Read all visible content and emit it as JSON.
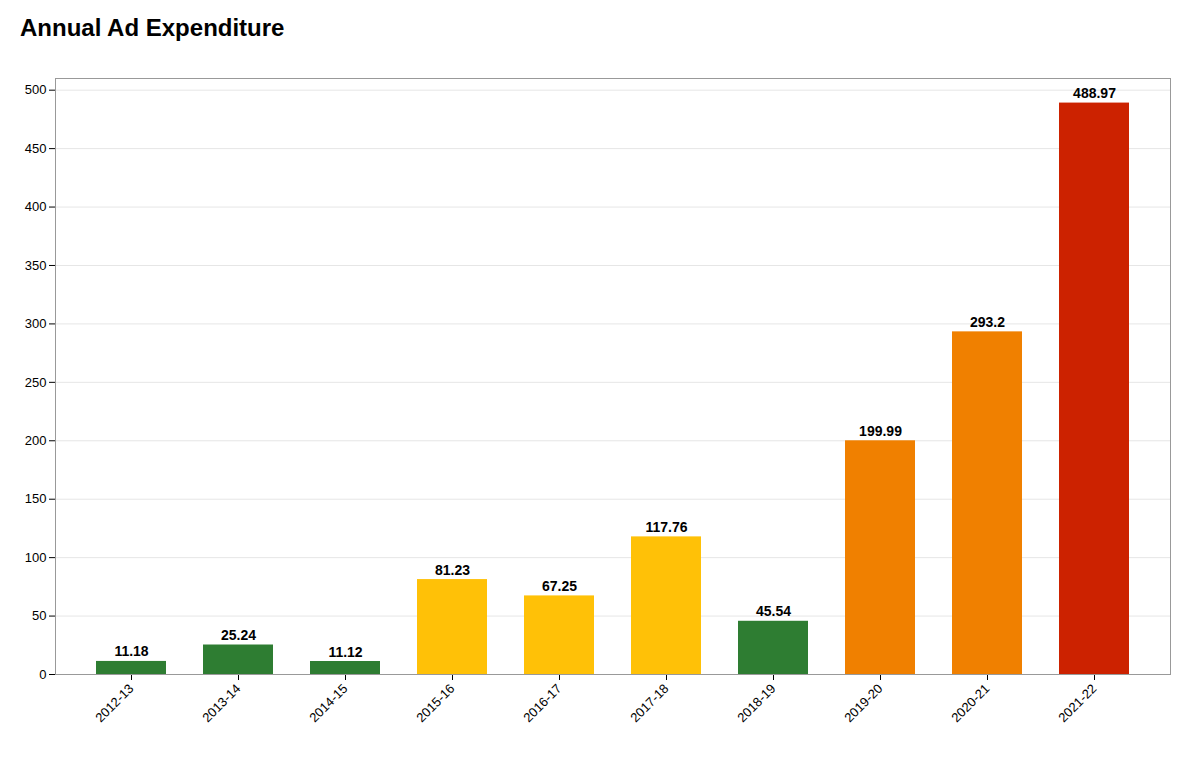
{
  "chart_data": {
    "type": "bar",
    "title": "Annual Ad Expenditure",
    "categories": [
      "2012-13",
      "2013-14",
      "2014-15",
      "2015-16",
      "2016-17",
      "2017-18",
      "2018-19",
      "2019-20",
      "2020-21",
      "2021-22"
    ],
    "values": [
      11.18,
      25.24,
      11.12,
      81.23,
      67.25,
      117.76,
      45.54,
      199.99,
      293.2,
      488.97
    ],
    "colors": [
      "#2e7d32",
      "#2e7d32",
      "#2e7d32",
      "#ffc107",
      "#ffc107",
      "#ffc107",
      "#2e7d32",
      "#f08000",
      "#f08000",
      "#cc2200"
    ],
    "ylim": [
      0,
      510
    ],
    "yticks": [
      0,
      50,
      100,
      150,
      200,
      250,
      300,
      350,
      400,
      450,
      500
    ],
    "grid": true,
    "data_labels": true
  }
}
